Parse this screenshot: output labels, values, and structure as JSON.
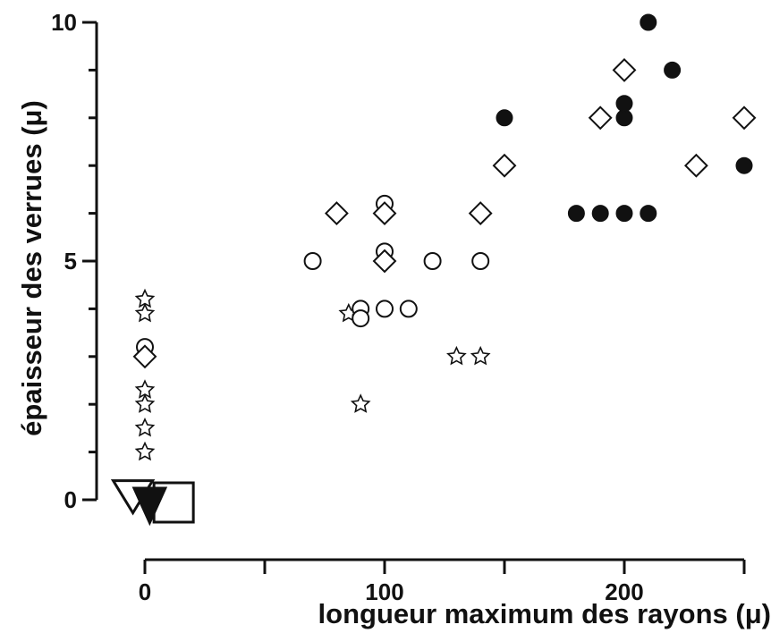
{
  "chart_data": {
    "type": "scatter",
    "title": "",
    "xlabel": "longueur maximum des rayons (μ)",
    "ylabel": "épaisseur des verrues (μ)",
    "xlim": [
      0,
      250
    ],
    "ylim": [
      0,
      10
    ],
    "x_ticks": [
      0,
      100,
      200
    ],
    "y_ticks": [
      0,
      5,
      10
    ],
    "grid": false,
    "series": [
      {
        "marker": "filled-circle",
        "points": [
          [
            150,
            8
          ],
          [
            180,
            6
          ],
          [
            190,
            6
          ],
          [
            200,
            6
          ],
          [
            200,
            8
          ],
          [
            200,
            8.3
          ],
          [
            210,
            6
          ],
          [
            210,
            10
          ],
          [
            220,
            9
          ],
          [
            250,
            7
          ]
        ]
      },
      {
        "marker": "open-diamond",
        "points": [
          [
            0,
            3
          ],
          [
            80,
            6
          ],
          [
            100,
            6
          ],
          [
            100,
            5
          ],
          [
            140,
            6
          ],
          [
            150,
            7
          ],
          [
            190,
            8
          ],
          [
            200,
            9
          ],
          [
            230,
            7
          ],
          [
            250,
            8
          ]
        ]
      },
      {
        "marker": "open-circle",
        "points": [
          [
            0,
            3.2
          ],
          [
            70,
            5
          ],
          [
            90,
            4
          ],
          [
            90,
            3.8
          ],
          [
            100,
            4
          ],
          [
            100,
            5.2
          ],
          [
            100,
            6.2
          ],
          [
            110,
            4
          ],
          [
            120,
            5
          ],
          [
            140,
            5
          ]
        ]
      },
      {
        "marker": "open-star",
        "points": [
          [
            0,
            1
          ],
          [
            0,
            1.5
          ],
          [
            0,
            2
          ],
          [
            0,
            2.3
          ],
          [
            0,
            3.9
          ],
          [
            0,
            4.2
          ],
          [
            85,
            3.9
          ],
          [
            90,
            2
          ],
          [
            130,
            3
          ],
          [
            140,
            3
          ]
        ]
      },
      {
        "marker": "open-triangle-down",
        "points": [
          [
            -5,
            0.1
          ]
        ]
      },
      {
        "marker": "filled-triangle-down",
        "points": [
          [
            2,
            0
          ]
        ]
      },
      {
        "marker": "open-square",
        "points": [
          [
            12,
            0
          ]
        ]
      }
    ]
  }
}
